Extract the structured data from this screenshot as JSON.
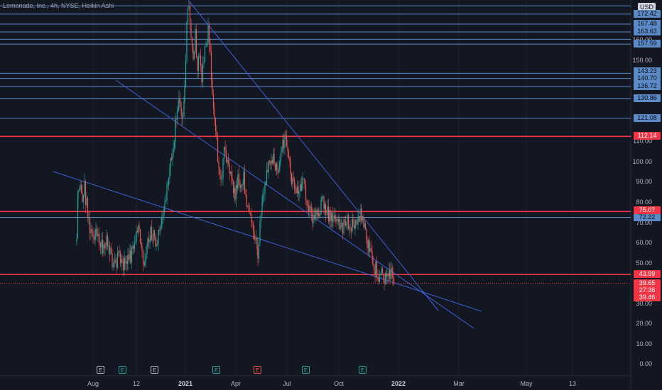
{
  "chart": {
    "title": "Lemonade, Inc., 4h, NYSE, Heikin Ashi",
    "currency": "USD",
    "colors": {
      "bg": "#131722",
      "up": "#26a69a",
      "down": "#ef5350",
      "hline_blue": "#5b8ac7",
      "hline_red": "#f23645",
      "trend": "#3d5fd6"
    },
    "y_axis": {
      "ticks": [
        "0.00",
        "10.00",
        "20.00",
        "30.00",
        "40.00",
        "50.00",
        "60.00",
        "70.00",
        "80.00",
        "90.00",
        "100.00",
        "110.00",
        "150.00",
        "160.00"
      ]
    },
    "x_axis": {
      "ticks": [
        "Aug",
        "12",
        "2021",
        "Apr",
        "Jul",
        "Oct",
        "2022",
        "Mar",
        "May",
        "13"
      ]
    },
    "blue_levels": [
      "172.42",
      "167.48",
      "163.63",
      "157.59",
      "143.23",
      "140.70",
      "136.72",
      "130.86",
      "121.08",
      "72.22"
    ],
    "red_levels": [
      "112.14",
      "75.07",
      "43.99"
    ],
    "current_price": {
      "price": "39.65",
      "countdown": "27:36",
      "prev": "39.46"
    },
    "events": [
      {
        "label": "E",
        "color": "#b2b5be"
      },
      {
        "label": "E",
        "color": "#26a69a"
      },
      {
        "label": "E",
        "color": "#b2b5be"
      },
      {
        "label": "E",
        "color": "#26a69a"
      },
      {
        "label": "E",
        "color": "#ef5350"
      },
      {
        "label": "E",
        "color": "#26a69a"
      },
      {
        "label": "E",
        "color": "#26a69a"
      }
    ]
  }
}
